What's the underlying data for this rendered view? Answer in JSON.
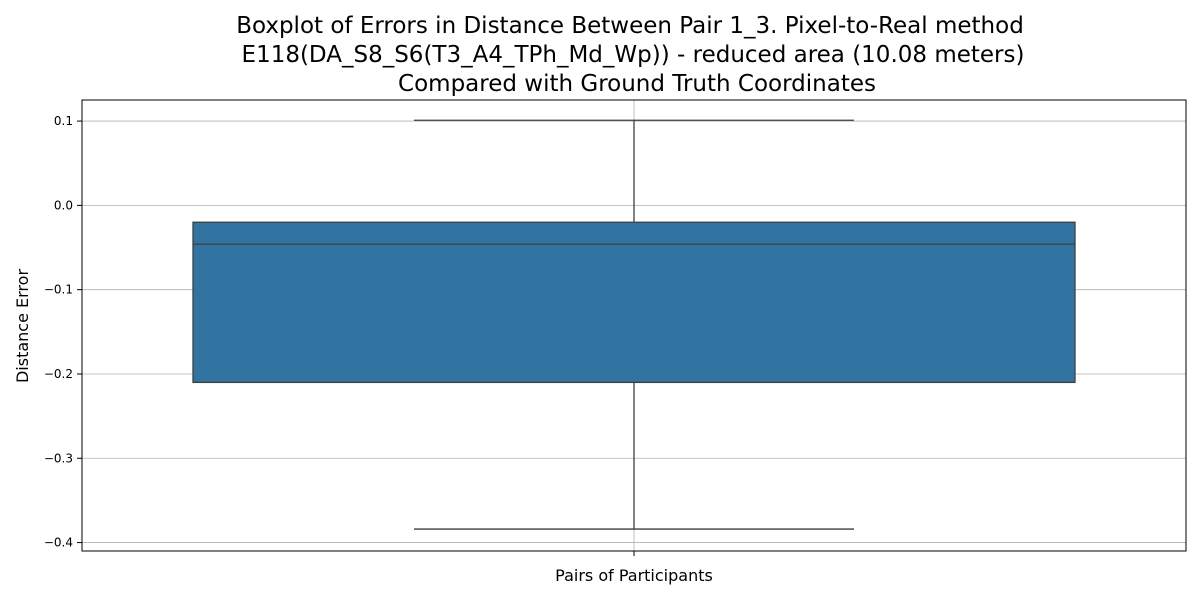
{
  "chart_data": {
    "type": "box",
    "title_lines": [
      "Boxplot of Errors in Distance Between Pair 1_3. Pixel-to-Real method",
      "E118(DA_S8_S6(T3_A4_TPh_Md_Wp)) - reduced area (10.08 meters)",
      "Compared with Ground Truth Coordinates"
    ],
    "xlabel": "Pairs of Participants",
    "ylabel": "Distance Error",
    "ylim": [
      -0.41,
      0.125
    ],
    "yticks": [
      0.1,
      0.0,
      -0.1,
      -0.2,
      -0.3,
      -0.4
    ],
    "ytick_labels": [
      "0.1",
      "0.0",
      "−0.1",
      "−0.2",
      "−0.3",
      "−0.4"
    ],
    "grid": true,
    "box": {
      "whisker_high": 0.101,
      "q3": -0.02,
      "median": -0.046,
      "q1": -0.21,
      "whisker_low": -0.384
    },
    "colors": {
      "box_fill": "#3274a1",
      "box_edge": "#3f3f3f",
      "grid": "#b0b0b0"
    }
  }
}
